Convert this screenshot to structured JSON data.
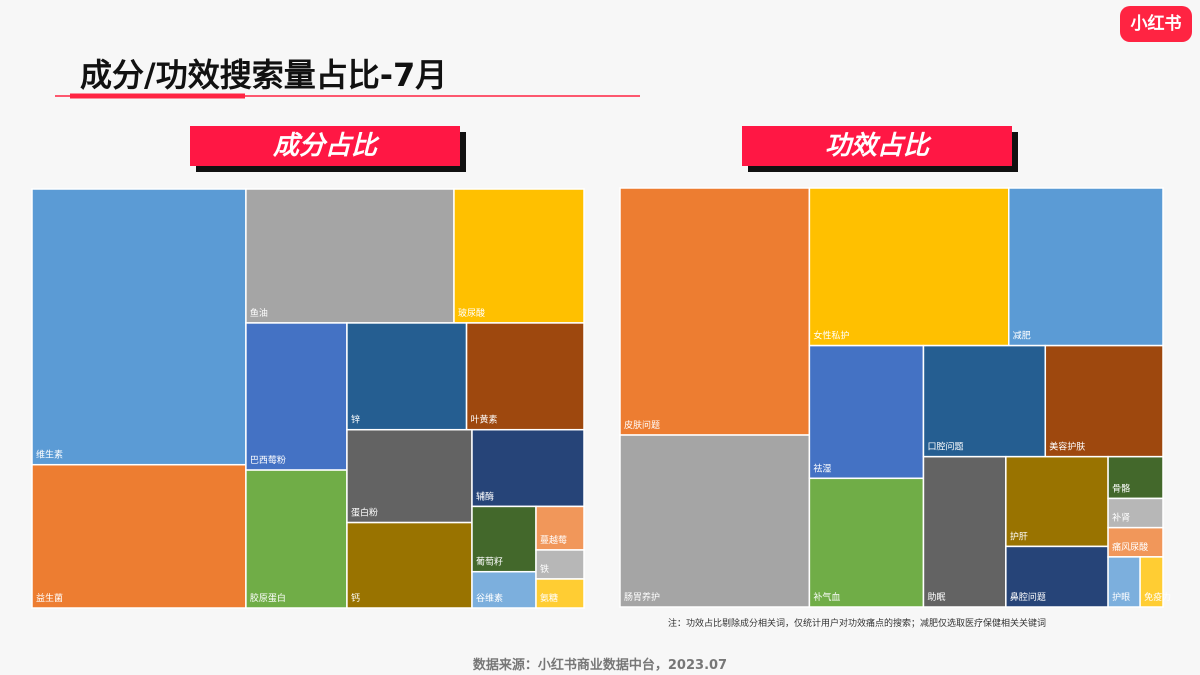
{
  "title": "成分/功效搜索量占比-7月",
  "logo": "小红书",
  "chart_data": [
    {
      "type": "treemap",
      "title": "成分占比",
      "categories": [
        "维生素",
        "益生菌",
        "鱼油",
        "玻尿酸",
        "巴西莓粉",
        "胶原蛋白",
        "锌",
        "叶黄素",
        "蛋白粉",
        "钙",
        "辅酶",
        "葡萄籽",
        "谷维素",
        "蔓越莓",
        "铁",
        "氨糖"
      ],
      "values": [
        25.4,
        13.2,
        12.0,
        7.5,
        6.4,
        6.0,
        5.5,
        5.4,
        5.0,
        4.6,
        3.7,
        1.8,
        1.0,
        0.9,
        0.6,
        0.6
      ],
      "colors": [
        "#5b9bd5",
        "#ed7d31",
        "#a5a5a5",
        "#ffc000",
        "#4472c4",
        "#70ad47",
        "#255e91",
        "#9e480e",
        "#636363",
        "#997300",
        "#264478",
        "#43682b",
        "#7cafdd",
        "#f1975a",
        "#b7b7b7",
        "#ffcd33"
      ]
    },
    {
      "type": "treemap",
      "title": "功效占比",
      "categories": [
        "皮肤问题",
        "肠胃养护",
        "女性私护",
        "减肥",
        "祛湿",
        "补气血",
        "口腔问题",
        "美容护肤",
        "助眠",
        "护肝",
        "鼻腔问题",
        "骨骼",
        "补肾",
        "痛风尿酸",
        "护眼",
        "免疫力"
      ],
      "values": [
        20.4,
        14.2,
        13.7,
        10.6,
        6.6,
        6.4,
        5.9,
        5.7,
        5.4,
        4.0,
        2.7,
        1.0,
        0.7,
        0.7,
        0.7,
        0.5
      ],
      "colors": [
        "#ed7d31",
        "#a5a5a5",
        "#ffc000",
        "#5b9bd5",
        "#4472c4",
        "#70ad47",
        "#255e91",
        "#9e480e",
        "#636363",
        "#997300",
        "#264478",
        "#43682b",
        "#b7b7b7",
        "#f1975a",
        "#7cafdd",
        "#ffcd33"
      ]
    }
  ],
  "note": "注：功效占比剔除成分相关词，仅统计用户对功效痛点的搜索；减肥仅选取医疗保健相关关键词",
  "source": "数据来源：小红书商业数据中台，2023.07"
}
